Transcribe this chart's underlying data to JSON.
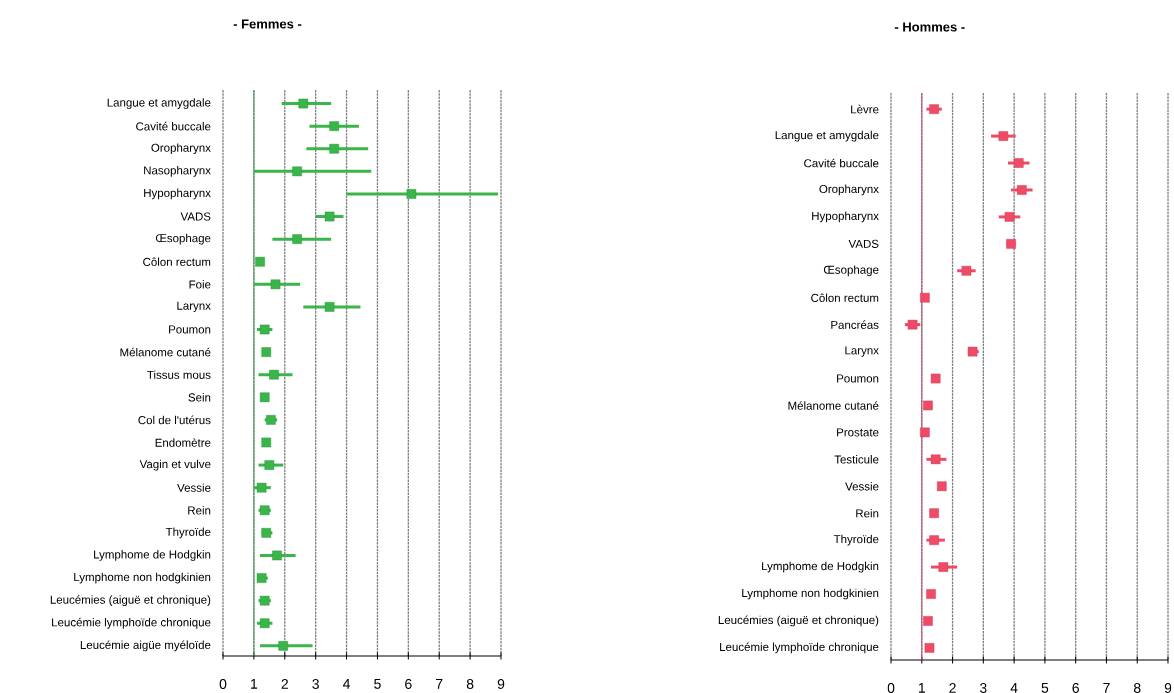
{
  "chart_data": [
    {
      "type": "scatter",
      "title": "- Femmes -",
      "orientation": "horizontal",
      "marker": "square",
      "color": "#39b54a",
      "grid": "x",
      "categories": [
        "Langue et amygdale",
        "Cavité buccale",
        "Oropharynx",
        "Nasopharynx",
        "Hypopharynx",
        "VADS",
        "Œsophage",
        "Côlon rectum",
        "Foie",
        "Larynx",
        "Poumon",
        "Mélanome cutané",
        "Tissus mous",
        "Sein",
        "Col de l'utérus",
        "Endomètre",
        "Vagin et vulve",
        "Vessie",
        "Rein",
        "Thyroïde",
        "Lymphome de Hodgkin",
        "Lymphome non hodgkinien",
        "Leucémies (aiguë et chronique)",
        "Leucémie lymphoïde chronique",
        "Leucémie aigüe myéloïde"
      ],
      "values": [
        2.6,
        3.6,
        3.6,
        2.4,
        6.1,
        3.45,
        2.4,
        1.2,
        1.7,
        3.45,
        1.35,
        1.4,
        1.65,
        1.35,
        1.55,
        1.4,
        1.5,
        1.25,
        1.35,
        1.4,
        1.75,
        1.25,
        1.35,
        1.35,
        1.95
      ],
      "errors": [
        [
          1.9,
          3.5
        ],
        [
          2.8,
          4.4
        ],
        [
          2.7,
          4.7
        ],
        [
          1.0,
          4.8
        ],
        [
          4.0,
          8.9
        ],
        [
          3.0,
          3.9
        ],
        [
          1.6,
          3.5
        ],
        null,
        [
          1.0,
          2.5
        ],
        [
          2.6,
          4.45
        ],
        [
          1.1,
          1.6
        ],
        null,
        [
          1.15,
          2.25
        ],
        null,
        [
          1.35,
          1.75
        ],
        null,
        [
          1.15,
          1.95
        ],
        [
          1.0,
          1.55
        ],
        [
          1.15,
          1.55
        ],
        [
          1.25,
          1.6
        ],
        [
          1.2,
          2.35
        ],
        [
          1.1,
          1.45
        ],
        [
          1.15,
          1.55
        ],
        [
          1.1,
          1.6
        ],
        [
          1.2,
          2.9
        ]
      ],
      "xlim": [
        0,
        9
      ],
      "xticks": [
        0,
        1,
        2,
        3,
        4,
        5,
        6,
        7,
        8,
        9
      ],
      "ref_lines": [
        {
          "axis": "x",
          "value": 1,
          "color": "#4a9a5a"
        }
      ]
    },
    {
      "type": "scatter",
      "title": "- Hommes -",
      "orientation": "horizontal",
      "marker": "square",
      "color": "#ef4b67",
      "grid": "x",
      "categories": [
        "Lèvre",
        "Langue et amygdale",
        "Cavité buccale",
        "Oropharynx",
        "Hypopharynx",
        "VADS",
        "Œsophage",
        "Côlon rectum",
        "Pancréas",
        "Larynx",
        "Poumon",
        "Mélanome cutané",
        "Prostate",
        "Testicule",
        "Vessie",
        "Rein",
        "Thyroïde",
        "Lymphome de Hodgkin",
        "Lymphome non hodgkinien",
        "Leucémies (aiguë et chronique)",
        "Leucémie lymphoïde chronique"
      ],
      "values": [
        1.4,
        3.65,
        4.15,
        4.25,
        3.85,
        3.9,
        2.45,
        1.1,
        0.7,
        2.65,
        1.45,
        1.2,
        1.1,
        1.45,
        1.65,
        1.4,
        1.4,
        1.7,
        1.3,
        1.2,
        1.25
      ],
      "errors": [
        [
          1.15,
          1.65
        ],
        [
          3.25,
          4.05
        ],
        [
          3.8,
          4.5
        ],
        [
          3.9,
          4.6
        ],
        [
          3.5,
          4.2
        ],
        [
          3.75,
          4.05
        ],
        [
          2.15,
          2.75
        ],
        null,
        [
          0.45,
          0.95
        ],
        [
          2.5,
          2.85
        ],
        null,
        null,
        null,
        [
          1.15,
          1.8
        ],
        null,
        null,
        [
          1.15,
          1.75
        ],
        [
          1.3,
          2.15
        ],
        null,
        null,
        null
      ],
      "xlim": [
        0,
        9
      ],
      "xticks": [
        0,
        1,
        2,
        3,
        4,
        5,
        6,
        7,
        8,
        9
      ],
      "ref_lines": [
        {
          "axis": "x",
          "value": 1,
          "color": "#c0506e"
        }
      ]
    }
  ]
}
